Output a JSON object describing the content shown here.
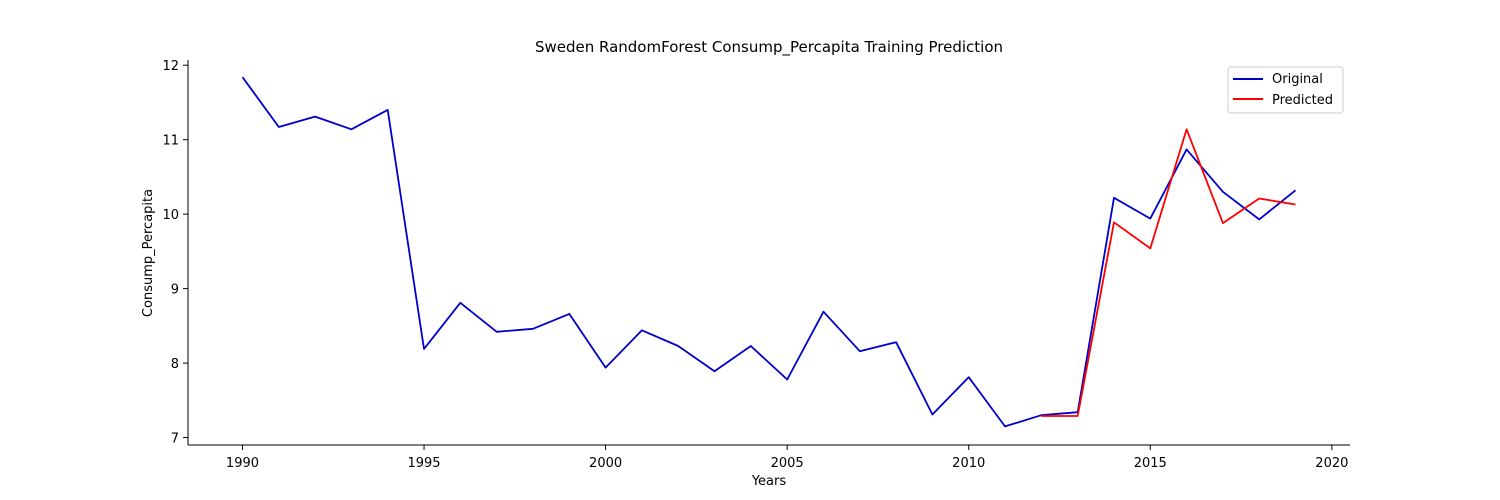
{
  "chart_data": {
    "type": "line",
    "title": "Sweden RandomForest Consump_Percapita Training Prediction",
    "xlabel": "Years",
    "ylabel": "Consump_Percapita",
    "xlim": [
      1988.5,
      2020.5
    ],
    "ylim": [
      6.9,
      12.07
    ],
    "xticks": [
      1990,
      1995,
      2000,
      2005,
      2010,
      2015,
      2020
    ],
    "yticks": [
      7,
      8,
      9,
      10,
      11,
      12
    ],
    "grid": false,
    "legend_position": "top-right",
    "series": [
      {
        "name": "Original",
        "color": "#0000cc",
        "x": [
          1990,
          1991,
          1992,
          1993,
          1994,
          1995,
          1996,
          1997,
          1998,
          1999,
          2000,
          2001,
          2002,
          2003,
          2004,
          2005,
          2006,
          2007,
          2008,
          2009,
          2010,
          2011,
          2012,
          2013,
          2014,
          2015,
          2016,
          2017,
          2018,
          2019
        ],
        "y": [
          11.84,
          11.17,
          11.31,
          11.14,
          11.4,
          8.19,
          8.81,
          8.42,
          8.46,
          8.66,
          7.94,
          8.44,
          8.23,
          7.89,
          8.23,
          7.78,
          8.69,
          8.16,
          8.28,
          7.31,
          7.81,
          7.15,
          7.3,
          7.34,
          10.22,
          9.94,
          10.87,
          10.3,
          9.93,
          10.32
        ]
      },
      {
        "name": "Predicted",
        "color": "#ff0000",
        "x": [
          2012,
          2013,
          2014,
          2015,
          2016,
          2017,
          2018,
          2019
        ],
        "y": [
          7.29,
          7.29,
          9.89,
          9.54,
          11.14,
          9.88,
          10.21,
          10.13
        ]
      }
    ]
  }
}
